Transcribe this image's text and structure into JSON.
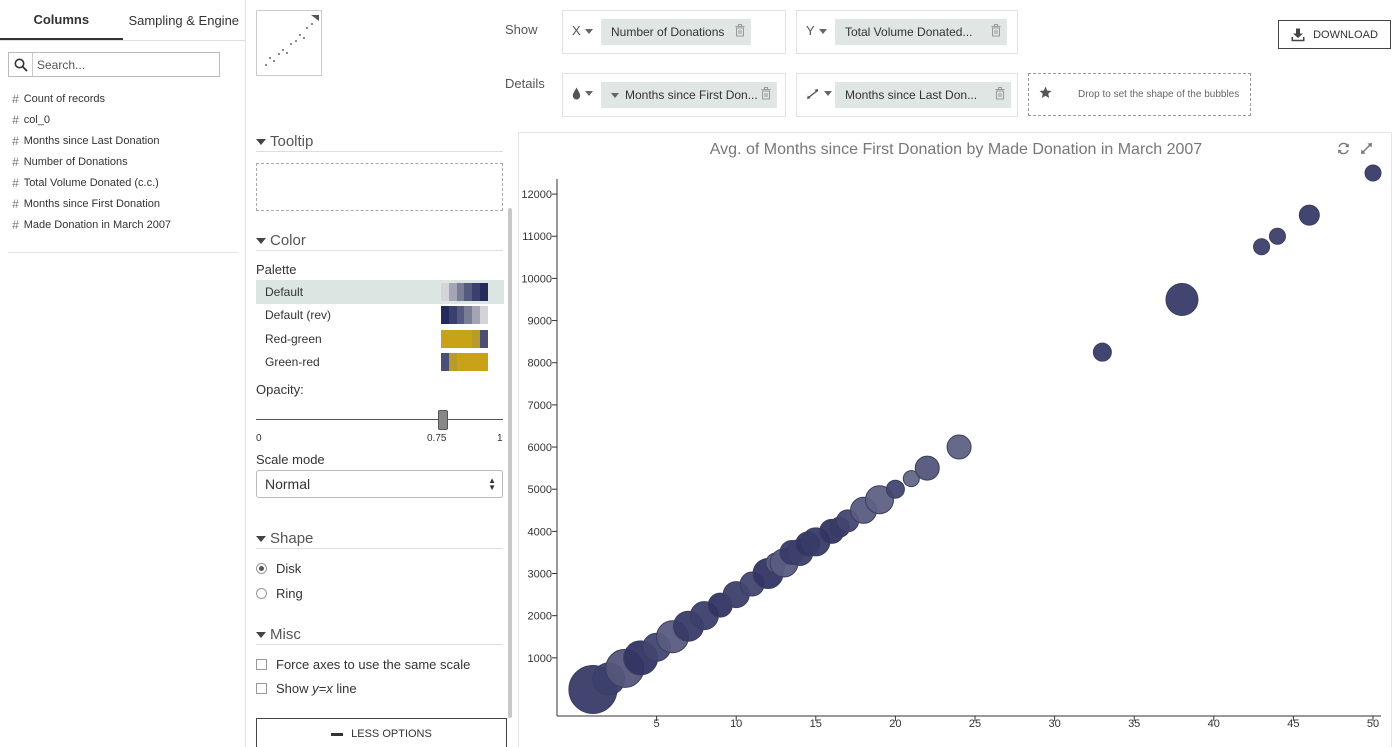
{
  "left_panel": {
    "tabs": [
      {
        "label": "Columns"
      },
      {
        "label": "Sampling & Engine"
      }
    ],
    "search_placeholder": "Search...",
    "columns": [
      {
        "label": "Count of records"
      },
      {
        "label": "col_0"
      },
      {
        "label": "Months since Last Donation"
      },
      {
        "label": "Number of Donations"
      },
      {
        "label": "Total Volume Donated (c.c.)"
      },
      {
        "label": "Months since First Donation"
      },
      {
        "label": "Made Donation in March 2007"
      }
    ]
  },
  "top_bar": {
    "show_label": "Show",
    "details_label": "Details",
    "x_tag": "X",
    "y_tag": "Y",
    "x_pill": "Number of Donations",
    "y_pill": "Total Volume Donated...",
    "color_pill": "Months since First Don...",
    "size_pill": "Months since Last Don...",
    "shape_drop": "Drop to set the shape of the bubbles",
    "download_label": "DOWNLOAD"
  },
  "options": {
    "tooltip_title": "Tooltip",
    "color_title": "Color",
    "palette_label": "Palette",
    "palettes": [
      {
        "label": "Default",
        "colors": [
          "#d4d4d8",
          "#a3a5b6",
          "#7a7d96",
          "#555a7e",
          "#3a3f6e",
          "#252a5c"
        ]
      },
      {
        "label": "Default (rev)",
        "colors": [
          "#252a5c",
          "#3a3f6e",
          "#555a7e",
          "#7a7d96",
          "#a3a5b6",
          "#d4d4d8"
        ]
      },
      {
        "label": "Red-green",
        "colors": [
          "#c9a317",
          "#c9a317",
          "#c9a317",
          "#c9a317",
          "#b89b2a",
          "#4a4f78"
        ]
      },
      {
        "label": "Green-red",
        "colors": [
          "#4a4f78",
          "#b89b2a",
          "#c9a317",
          "#c9a317",
          "#c9a317",
          "#c9a317"
        ]
      }
    ],
    "opacity_label": "Opacity:",
    "opacity_value": 0.75,
    "opacity_min": "0",
    "opacity_max": "1",
    "opacity_value_label": "0.75",
    "scale_mode_label": "Scale mode",
    "scale_mode_value": "Normal",
    "shape_title": "Shape",
    "shape_disk": "Disk",
    "shape_ring": "Ring",
    "misc_title": "Misc",
    "force_axes": "Force axes to use the same scale",
    "show_line_prefix": "Show ",
    "show_line_italic": "y=x",
    "show_line_suffix": " line",
    "less_options": "LESS OPTIONS"
  },
  "chart_data": {
    "type": "scatter",
    "title": "Avg. of Months since First Donation by Made Donation in March 2007",
    "xlabel": "",
    "ylabel": "",
    "xlim": [
      0,
      50
    ],
    "ylim": [
      0,
      12500
    ],
    "x_ticks": [
      5,
      10,
      15,
      20,
      25,
      30,
      35,
      40,
      45,
      50
    ],
    "y_ticks": [
      1000,
      2000,
      3000,
      4000,
      5000,
      6000,
      7000,
      8000,
      9000,
      10000,
      11000,
      12000
    ],
    "grid": false,
    "points": [
      {
        "x": 1,
        "y": 250,
        "r": 24,
        "shade": 0.85
      },
      {
        "x": 2,
        "y": 500,
        "r": 16,
        "shade": 0.8
      },
      {
        "x": 3,
        "y": 750,
        "r": 19,
        "shade": 0.6
      },
      {
        "x": 4,
        "y": 1000,
        "r": 17,
        "shade": 0.9
      },
      {
        "x": 5,
        "y": 1250,
        "r": 14,
        "shade": 0.75
      },
      {
        "x": 6,
        "y": 1500,
        "r": 16,
        "shade": 0.55
      },
      {
        "x": 7,
        "y": 1750,
        "r": 15,
        "shade": 0.85
      },
      {
        "x": 8,
        "y": 2000,
        "r": 14,
        "shade": 0.8
      },
      {
        "x": 9,
        "y": 2250,
        "r": 12,
        "shade": 0.9
      },
      {
        "x": 10,
        "y": 2500,
        "r": 13,
        "shade": 0.8
      },
      {
        "x": 11,
        "y": 2750,
        "r": 12,
        "shade": 0.75
      },
      {
        "x": 12,
        "y": 3000,
        "r": 15,
        "shade": 0.9
      },
      {
        "x": 12.5,
        "y": 3250,
        "r": 10,
        "shade": 0.5
      },
      {
        "x": 13,
        "y": 3250,
        "r": 14,
        "shade": 0.55
      },
      {
        "x": 13.5,
        "y": 3500,
        "r": 12,
        "shade": 0.85
      },
      {
        "x": 14,
        "y": 3500,
        "r": 13,
        "shade": 0.8
      },
      {
        "x": 14.5,
        "y": 3700,
        "r": 12,
        "shade": 0.9
      },
      {
        "x": 15,
        "y": 3750,
        "r": 14,
        "shade": 0.85
      },
      {
        "x": 16,
        "y": 4000,
        "r": 12,
        "shade": 0.9
      },
      {
        "x": 16.5,
        "y": 4100,
        "r": 10,
        "shade": 0.85
      },
      {
        "x": 17,
        "y": 4250,
        "r": 11,
        "shade": 0.75
      },
      {
        "x": 18,
        "y": 4500,
        "r": 13,
        "shade": 0.55
      },
      {
        "x": 19,
        "y": 4750,
        "r": 14,
        "shade": 0.5
      },
      {
        "x": 20,
        "y": 5000,
        "r": 9,
        "shade": 0.75
      },
      {
        "x": 21,
        "y": 5250,
        "r": 8,
        "shade": 0.45
      },
      {
        "x": 22,
        "y": 5500,
        "r": 12,
        "shade": 0.6
      },
      {
        "x": 24,
        "y": 6000,
        "r": 12,
        "shade": 0.5
      },
      {
        "x": 33,
        "y": 8250,
        "r": 9,
        "shade": 0.85
      },
      {
        "x": 38,
        "y": 9500,
        "r": 16,
        "shade": 0.85
      },
      {
        "x": 43,
        "y": 10750,
        "r": 8,
        "shade": 0.8
      },
      {
        "x": 44,
        "y": 11000,
        "r": 8,
        "shade": 0.8
      },
      {
        "x": 46,
        "y": 11500,
        "r": 10,
        "shade": 0.85
      },
      {
        "x": 50,
        "y": 12500,
        "r": 8,
        "shade": 0.85
      }
    ]
  }
}
